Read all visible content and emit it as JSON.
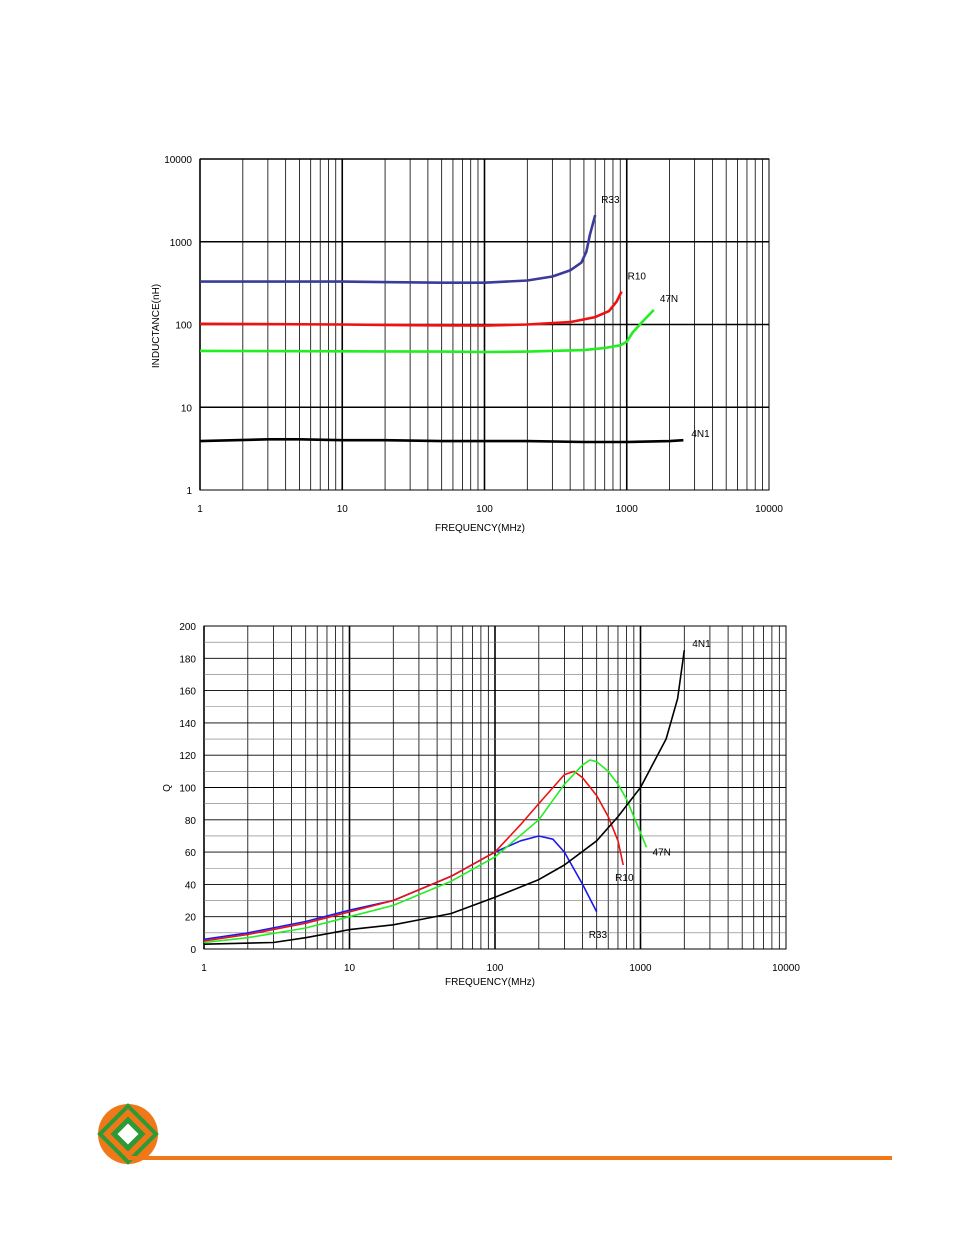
{
  "colors": {
    "accent": "#f07818",
    "logo_green": "#2e9a36",
    "grid": "#000000"
  },
  "chart_data": [
    {
      "type": "line",
      "title": "",
      "xlabel": "FREQUENCY(MHz)",
      "ylabel": "INDUCTANCE(nH)",
      "xscale": "log",
      "yscale": "log",
      "xlim": [
        1,
        10000
      ],
      "ylim": [
        1,
        10000
      ],
      "x_ticks": [
        "1",
        "10",
        "100",
        "1000",
        "10000"
      ],
      "y_ticks": [
        "1",
        "10",
        "100",
        "1000",
        "10000"
      ],
      "grid": true,
      "series": [
        {
          "name": "R33",
          "color": "#3b3b9a",
          "x": [
            1,
            10,
            50,
            100,
            200,
            300,
            400,
            480,
            520,
            550,
            600
          ],
          "y": [
            330,
            330,
            320,
            320,
            340,
            380,
            450,
            560,
            760,
            1200,
            2100
          ]
        },
        {
          "name": "R10",
          "color": "#ee1111",
          "x": [
            1,
            10,
            30,
            100,
            200,
            400,
            600,
            750,
            850,
            920
          ],
          "y": [
            102,
            100,
            98,
            97,
            100,
            107,
            123,
            145,
            190,
            250
          ]
        },
        {
          "name": "47N",
          "color": "#22ee22",
          "x": [
            1,
            10,
            50,
            100,
            200,
            500,
            700,
            900,
            1000,
            1100,
            1300,
            1550
          ],
          "y": [
            48,
            47.5,
            47,
            46.5,
            47,
            49,
            52,
            56,
            62,
            80,
            110,
            150
          ]
        },
        {
          "name": "4N1",
          "color": "#000000",
          "x": [
            1,
            3,
            5,
            10,
            20,
            50,
            100,
            200,
            500,
            1000,
            2000,
            2500
          ],
          "y": [
            3.9,
            4.1,
            4.1,
            4.0,
            4.0,
            3.9,
            3.9,
            3.9,
            3.8,
            3.8,
            3.9,
            4.0
          ]
        }
      ]
    },
    {
      "type": "line",
      "title": "",
      "xlabel": "FREQUENCY(MHz)",
      "ylabel": "Q",
      "xscale": "log",
      "yscale": "linear",
      "xlim": [
        1,
        10000
      ],
      "ylim": [
        0,
        200
      ],
      "x_ticks": [
        "1",
        "10",
        "100",
        "1000",
        "10000"
      ],
      "y_ticks": [
        "0",
        "20",
        "40",
        "60",
        "80",
        "100",
        "120",
        "140",
        "160",
        "180",
        "200"
      ],
      "grid": true,
      "series": [
        {
          "name": "R33",
          "color": "#1a1aee",
          "x": [
            1,
            2,
            5,
            10,
            20,
            50,
            100,
            150,
            200,
            250,
            300,
            400,
            500
          ],
          "y": [
            6,
            10,
            17,
            24,
            30,
            45,
            60,
            67,
            70,
            68,
            60,
            40,
            23
          ]
        },
        {
          "name": "R10",
          "color": "#ee1111",
          "x": [
            1,
            2,
            5,
            10,
            20,
            50,
            100,
            150,
            200,
            300,
            350,
            400,
            500,
            600,
            700,
            760
          ],
          "y": [
            5,
            9,
            16,
            23,
            30,
            45,
            60,
            77,
            90,
            108,
            110,
            106,
            95,
            82,
            67,
            52
          ]
        },
        {
          "name": "47N",
          "color": "#22ee22",
          "x": [
            1,
            2,
            5,
            10,
            20,
            50,
            100,
            200,
            300,
            400,
            450,
            500,
            600,
            700,
            800,
            900,
            1000,
            1100
          ],
          "y": [
            4,
            7,
            13,
            20,
            27,
            42,
            57,
            80,
            102,
            114,
            117,
            116,
            110,
            102,
            93,
            82,
            72,
            63
          ]
        },
        {
          "name": "4N1",
          "color": "#000000",
          "x": [
            1,
            3,
            5,
            10,
            20,
            30,
            50,
            100,
            200,
            300,
            500,
            700,
            1000,
            1500,
            1800,
            2000
          ],
          "y": [
            3,
            4,
            7,
            12,
            15,
            18,
            22,
            32,
            43,
            52,
            67,
            82,
            100,
            130,
            155,
            185
          ]
        }
      ]
    }
  ]
}
